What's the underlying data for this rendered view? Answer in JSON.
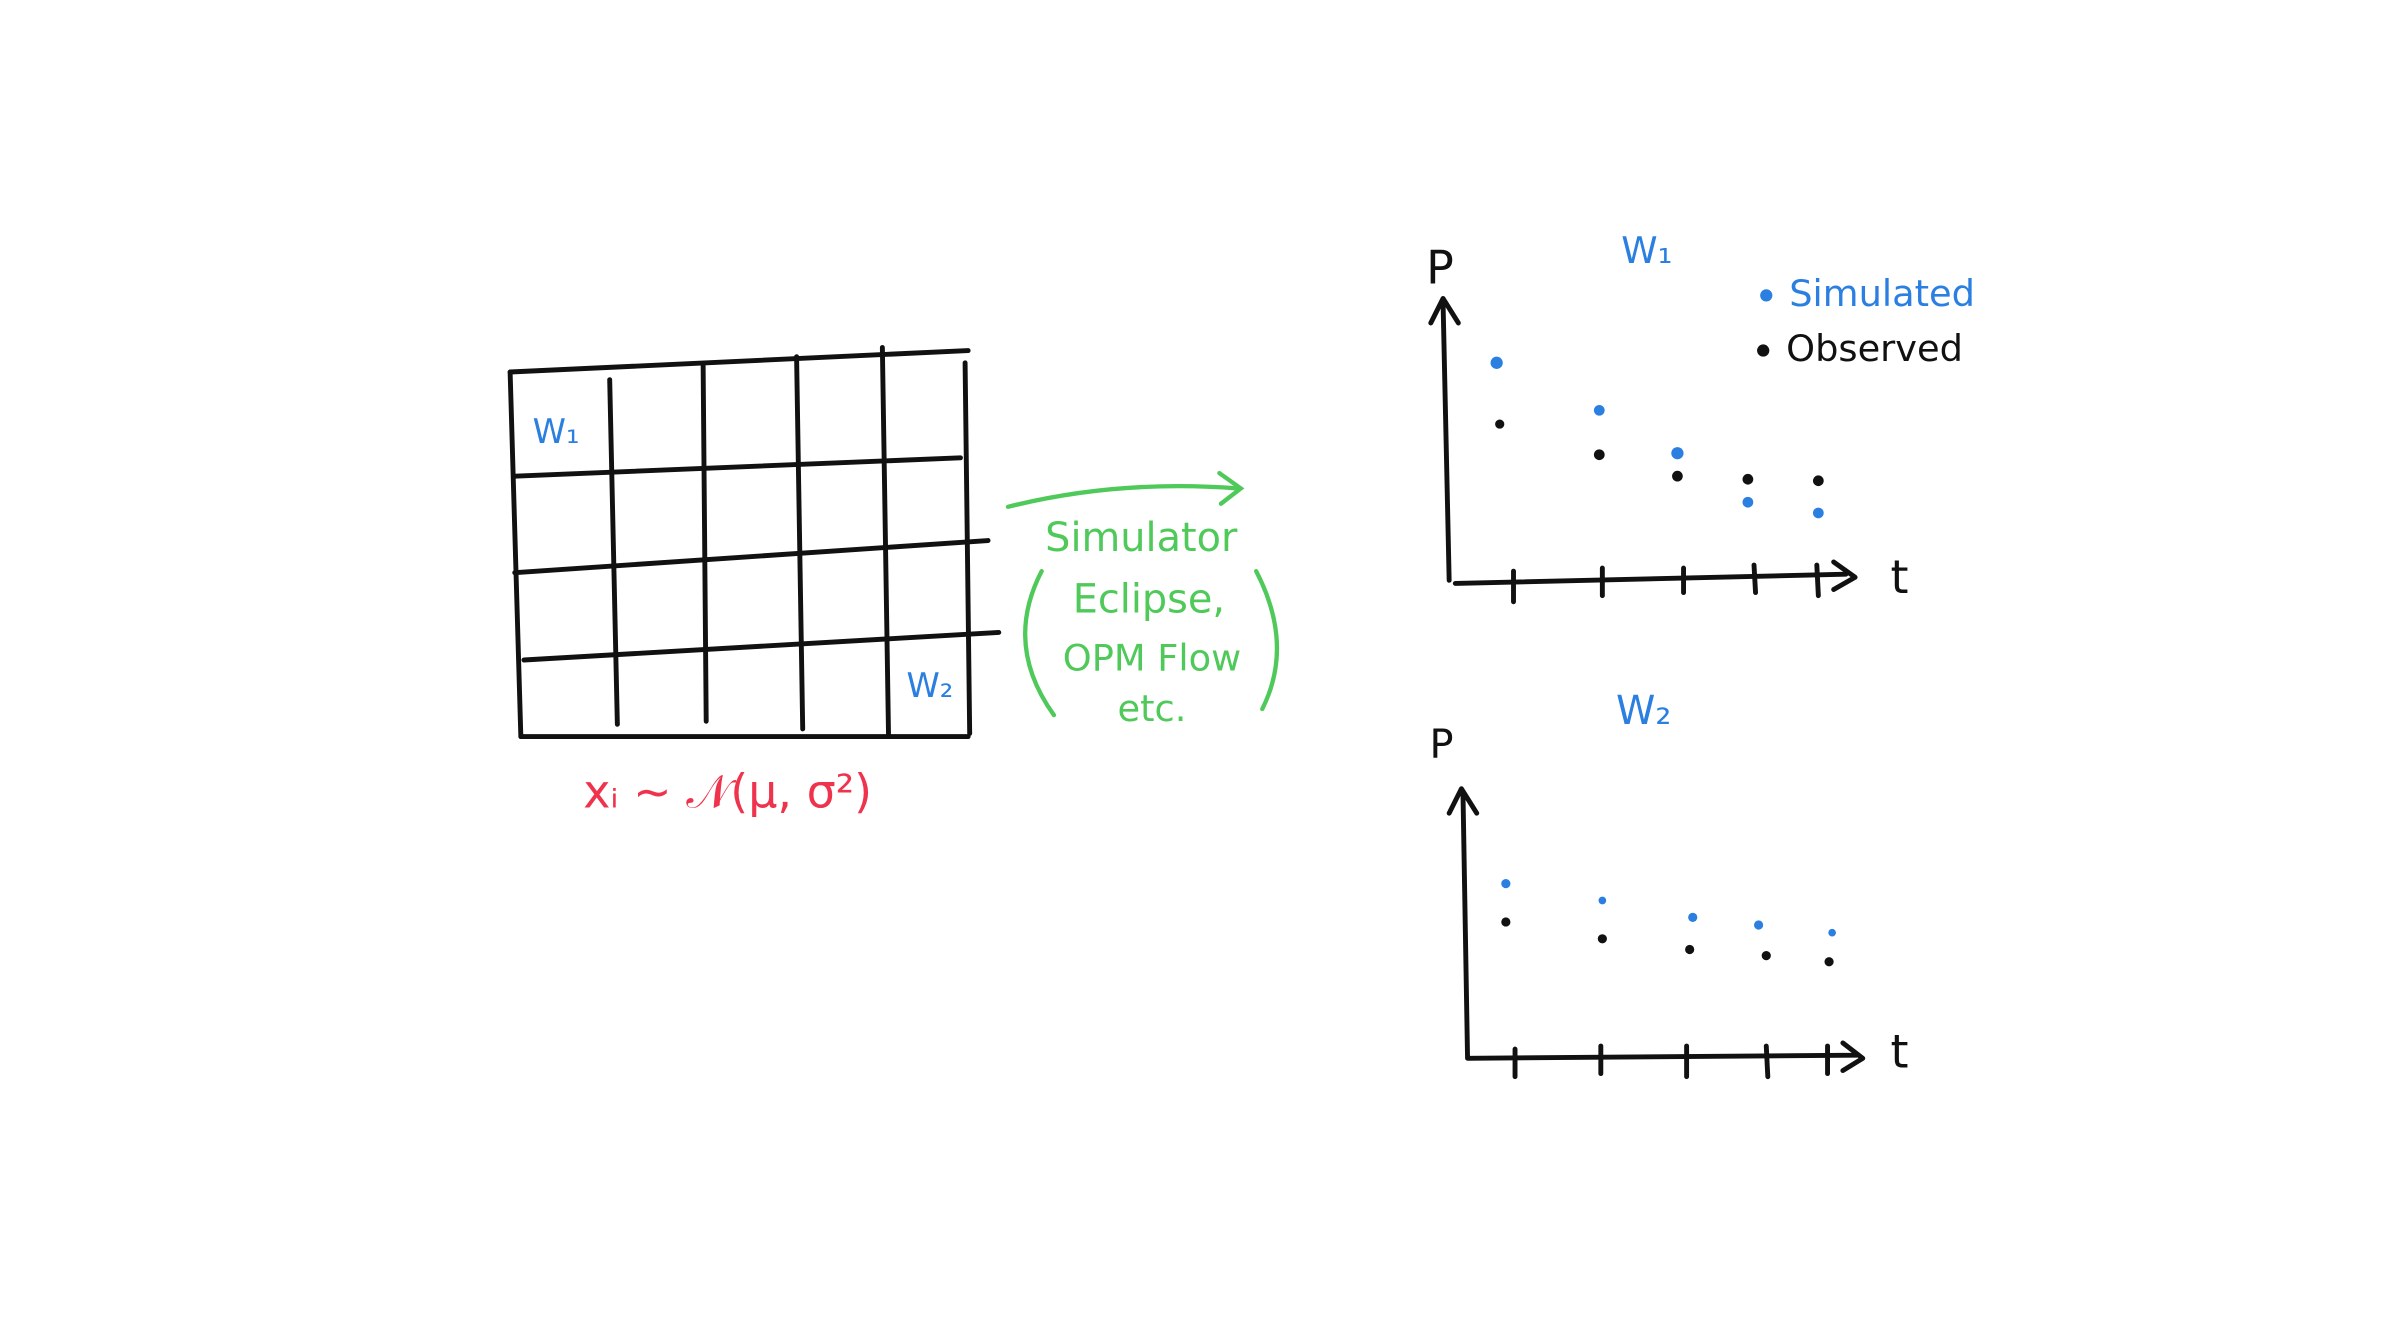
{
  "grid": {
    "wells": [
      "W₁",
      "W₂"
    ],
    "caption": "xᵢ ~ 𝒩(μ, σ²)"
  },
  "simulator": {
    "lines": [
      "Simulator",
      "Eclipse,",
      "OPM Flow",
      "etc."
    ]
  },
  "charts": [
    {
      "title": "W₁",
      "y_label": "P",
      "x_label": "t",
      "legend": [
        "Simulated",
        "Observed"
      ]
    },
    {
      "title": "W₂",
      "y_label": "P",
      "x_label": "t"
    }
  ]
}
